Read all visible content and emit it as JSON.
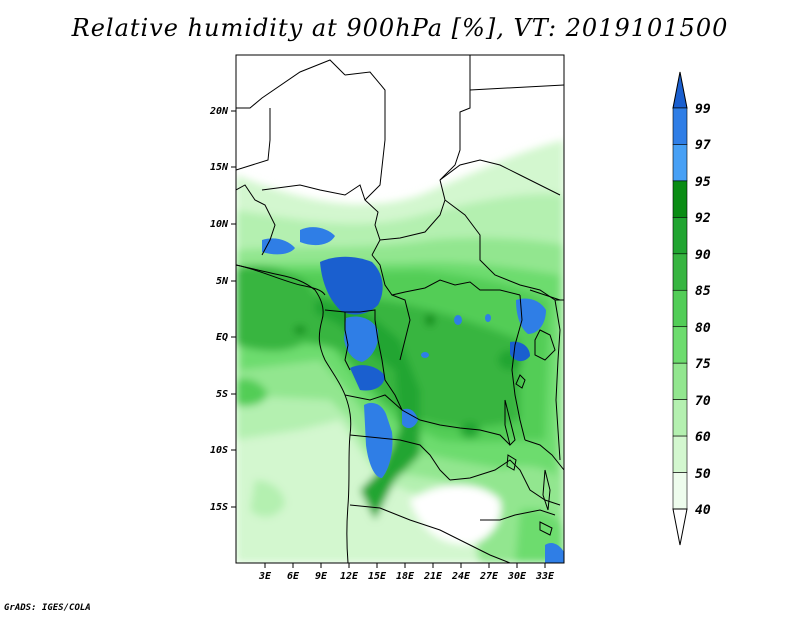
{
  "title": "Relative humidity at 900hPa [%], VT: 2019101500",
  "footer": "GrADS: IGES/COLA",
  "map": {
    "lat_labels": [
      "20N",
      "15N",
      "10N",
      "5N",
      "EQ",
      "5S",
      "10S",
      "15S"
    ],
    "lon_labels": [
      "3E",
      "6E",
      "9E",
      "12E",
      "15E",
      "18E",
      "21E",
      "24E",
      "27E",
      "30E",
      "33E"
    ]
  },
  "colorbar": {
    "levels": [
      "99",
      "97",
      "95",
      "92",
      "90",
      "85",
      "80",
      "75",
      "70",
      "60",
      "50",
      "40"
    ],
    "colors": [
      "#1a5fcf",
      "#2f7ee6",
      "#47a0f5",
      "#0a8c14",
      "#21a531",
      "#37b541",
      "#52cd57",
      "#6ddc6e",
      "#92e68f",
      "#b4f0b0",
      "#d3f7cf",
      "#eefced"
    ]
  }
}
